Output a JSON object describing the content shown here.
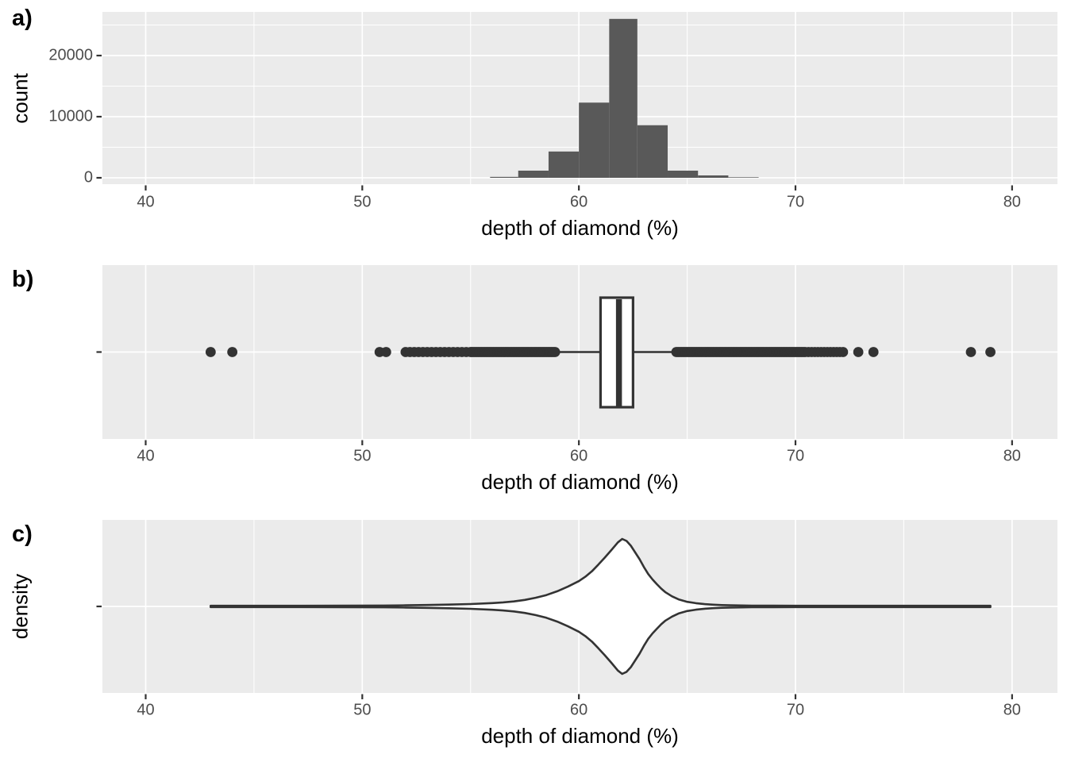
{
  "colors": {
    "panel_background": "#EBEBEB",
    "grid": "#FFFFFF",
    "bar_fill": "#595959",
    "stroke": "#333333",
    "point": "#333333",
    "box_fill": "#FFFFFF",
    "tick_mark": "#333333",
    "tick_label": "#4D4D4D",
    "text": "#000000"
  },
  "chart_data": [
    {
      "type": "histogram",
      "panel_label": "a)",
      "xlabel": "depth of diamond (%)",
      "ylabel": "count",
      "xlim": [
        38.0,
        82.1
      ],
      "ylim": [
        0,
        27200
      ],
      "x_ticks": [
        40,
        50,
        60,
        70,
        80
      ],
      "x_tick_labels": [
        "40",
        "50",
        "60",
        "70",
        "80"
      ],
      "x_minor_ticks": [
        45,
        55,
        65,
        75
      ],
      "y_ticks": [
        0,
        10000,
        20000
      ],
      "y_tick_labels": [
        "0",
        "10000",
        "20000"
      ],
      "y_minor_ticks": [
        5000,
        15000,
        25000
      ],
      "grid": "on",
      "bins": [
        {
          "x0": 55.9,
          "x1": 57.2,
          "count": 150
        },
        {
          "x0": 57.2,
          "x1": 58.6,
          "count": 1170
        },
        {
          "x0": 58.6,
          "x1": 60.0,
          "count": 4300
        },
        {
          "x0": 60.0,
          "x1": 61.4,
          "count": 12300
        },
        {
          "x0": 61.4,
          "x1": 62.7,
          "count": 26000
        },
        {
          "x0": 62.7,
          "x1": 64.1,
          "count": 8600
        },
        {
          "x0": 64.1,
          "x1": 65.5,
          "count": 1170
        },
        {
          "x0": 65.5,
          "x1": 66.9,
          "count": 390
        },
        {
          "x0": 66.9,
          "x1": 68.3,
          "count": 60
        }
      ]
    },
    {
      "type": "boxplot",
      "panel_label": "b)",
      "xlabel": "depth of diamond (%)",
      "ylabel": "",
      "xlim": [
        38.0,
        82.1
      ],
      "x_ticks": [
        40,
        50,
        60,
        70,
        80
      ],
      "x_tick_labels": [
        "40",
        "50",
        "60",
        "70",
        "80"
      ],
      "x_minor_ticks": [
        45,
        55,
        65,
        75
      ],
      "grid": "on",
      "box": {
        "q1": 61.0,
        "median": 61.85,
        "q3": 62.5,
        "whisker_low": 58.9,
        "whisker_high": 64.7
      },
      "outlier_points_low": [
        43.0,
        44.0,
        50.8,
        51.1
      ],
      "outlier_bands": [
        {
          "from": 52.0,
          "to": 55.0,
          "step": 0.2
        },
        {
          "from": 55.05,
          "to": 58.9,
          "step": 0.07
        },
        {
          "from": 64.5,
          "to": 70.5,
          "step": 0.07
        },
        {
          "from": 70.6,
          "to": 72.2,
          "step": 0.145
        }
      ],
      "outlier_points_high": [
        72.9,
        73.6,
        78.1,
        79.0
      ]
    },
    {
      "type": "violin",
      "panel_label": "c)",
      "xlabel": "depth of diamond (%)",
      "ylabel": "density",
      "xlim": [
        38.0,
        82.1
      ],
      "x_ticks": [
        40,
        50,
        60,
        70,
        80
      ],
      "x_tick_labels": [
        "40",
        "50",
        "60",
        "70",
        "80"
      ],
      "x_minor_ticks": [
        45,
        55,
        65,
        75
      ],
      "grid": "on",
      "peak_x": 62.0,
      "x_range": [
        43.0,
        79.0
      ],
      "profile": [
        {
          "x": 43.0,
          "d": 0.01
        },
        {
          "x": 45.0,
          "d": 0.01
        },
        {
          "x": 47.0,
          "d": 0.01
        },
        {
          "x": 49.0,
          "d": 0.011
        },
        {
          "x": 51.0,
          "d": 0.013
        },
        {
          "x": 52.0,
          "d": 0.016
        },
        {
          "x": 53.0,
          "d": 0.021
        },
        {
          "x": 54.0,
          "d": 0.027
        },
        {
          "x": 55.0,
          "d": 0.035
        },
        {
          "x": 56.0,
          "d": 0.049
        },
        {
          "x": 56.5,
          "d": 0.06
        },
        {
          "x": 57.0,
          "d": 0.074
        },
        {
          "x": 57.5,
          "d": 0.097
        },
        {
          "x": 58.0,
          "d": 0.128
        },
        {
          "x": 58.5,
          "d": 0.168
        },
        {
          "x": 59.0,
          "d": 0.225
        },
        {
          "x": 59.5,
          "d": 0.295
        },
        {
          "x": 60.0,
          "d": 0.375
        },
        {
          "x": 60.3,
          "d": 0.44
        },
        {
          "x": 60.6,
          "d": 0.52
        },
        {
          "x": 60.9,
          "d": 0.62
        },
        {
          "x": 61.2,
          "d": 0.725
        },
        {
          "x": 61.5,
          "d": 0.835
        },
        {
          "x": 61.8,
          "d": 0.95
        },
        {
          "x": 62.0,
          "d": 1.0
        },
        {
          "x": 62.2,
          "d": 0.97
        },
        {
          "x": 62.4,
          "d": 0.9
        },
        {
          "x": 62.6,
          "d": 0.8
        },
        {
          "x": 62.8,
          "d": 0.7
        },
        {
          "x": 63.0,
          "d": 0.585
        },
        {
          "x": 63.2,
          "d": 0.48
        },
        {
          "x": 63.4,
          "d": 0.4
        },
        {
          "x": 63.6,
          "d": 0.33
        },
        {
          "x": 63.8,
          "d": 0.265
        },
        {
          "x": 64.0,
          "d": 0.21
        },
        {
          "x": 64.3,
          "d": 0.15
        },
        {
          "x": 64.6,
          "d": 0.105
        },
        {
          "x": 65.0,
          "d": 0.068
        },
        {
          "x": 65.4,
          "d": 0.048
        },
        {
          "x": 65.8,
          "d": 0.034
        },
        {
          "x": 66.2,
          "d": 0.026
        },
        {
          "x": 66.6,
          "d": 0.02
        },
        {
          "x": 67.0,
          "d": 0.017
        },
        {
          "x": 67.5,
          "d": 0.014
        },
        {
          "x": 68.0,
          "d": 0.012
        },
        {
          "x": 69.0,
          "d": 0.011
        },
        {
          "x": 70.0,
          "d": 0.01
        },
        {
          "x": 72.0,
          "d": 0.0095
        },
        {
          "x": 74.0,
          "d": 0.009
        },
        {
          "x": 76.0,
          "d": 0.009
        },
        {
          "x": 78.0,
          "d": 0.009
        },
        {
          "x": 79.0,
          "d": 0.009
        }
      ]
    }
  ]
}
